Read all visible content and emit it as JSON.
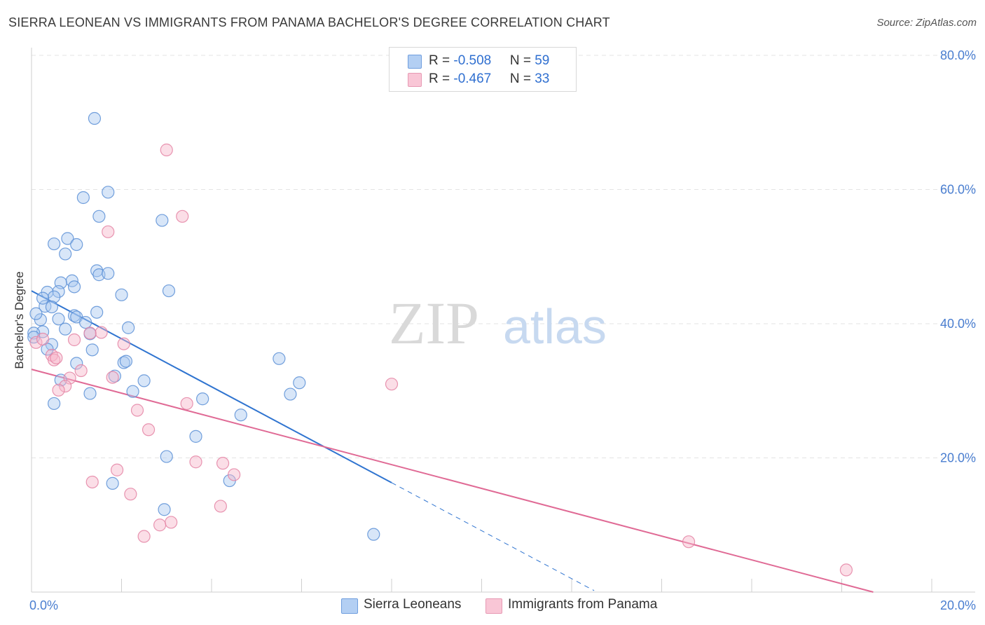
{
  "title": "SIERRA LEONEAN VS IMMIGRANTS FROM PANAMA BACHELOR'S DEGREE CORRELATION CHART",
  "source": "Source: ZipAtlas.com",
  "watermark": {
    "zip": "ZIP",
    "atlas": "atlas"
  },
  "legend_top": [
    {
      "r_label": "R = ",
      "r_value": "-0.508",
      "n_label": "N = ",
      "n_value": "59"
    },
    {
      "r_label": "R = ",
      "r_value": "-0.467",
      "n_label": "N = ",
      "n_value": "33"
    }
  ],
  "colors": {
    "blue_fill": "#a9c8f0",
    "blue_stroke": "#5b8fd6",
    "blue_line": "#2f74d0",
    "pink_fill": "#f6b6c9",
    "pink_stroke": "#e483a3",
    "pink_line": "#e06a95",
    "grid": "#e3e3e3",
    "axis_text": "#4a7ed0"
  },
  "chart_data": {
    "type": "scatter",
    "title": "SIERRA LEONEAN VS IMMIGRANTS FROM PANAMA BACHELOR'S DEGREE CORRELATION CHART",
    "xlabel": "",
    "ylabel": "Bachelor's Degree",
    "xlim": [
      0,
      20
    ],
    "ylim": [
      0,
      80
    ],
    "x_tick_labels": [
      "0.0%",
      "20.0%"
    ],
    "y_tick_values": [
      20,
      40,
      60,
      80
    ],
    "y_tick_labels": [
      "20.0%",
      "40.0%",
      "60.0%",
      "80.0%"
    ],
    "grid": true,
    "legend_position": "bottom",
    "series": [
      {
        "name": "Sierra Leoneans",
        "color": "blue",
        "trend": {
          "x0": 0,
          "y0": 44.9,
          "x1": 8.0,
          "y1": 16.3,
          "dashed_to_x": 12.5
        },
        "points": [
          [
            1.4,
            70.6
          ],
          [
            1.7,
            59.6
          ],
          [
            1.15,
            58.8
          ],
          [
            1.5,
            56.0
          ],
          [
            2.9,
            55.4
          ],
          [
            0.8,
            52.7
          ],
          [
            0.5,
            51.9
          ],
          [
            1.0,
            51.8
          ],
          [
            0.75,
            50.4
          ],
          [
            1.45,
            47.9
          ],
          [
            1.5,
            47.3
          ],
          [
            1.7,
            47.5
          ],
          [
            0.9,
            46.4
          ],
          [
            0.65,
            46.1
          ],
          [
            0.95,
            45.5
          ],
          [
            0.6,
            44.8
          ],
          [
            0.35,
            44.7
          ],
          [
            3.05,
            44.9
          ],
          [
            0.5,
            44.0
          ],
          [
            0.3,
            42.6
          ],
          [
            0.45,
            42.5
          ],
          [
            1.45,
            41.7
          ],
          [
            0.95,
            41.2
          ],
          [
            1.0,
            41.0
          ],
          [
            0.6,
            40.7
          ],
          [
            0.2,
            40.6
          ],
          [
            0.1,
            41.5
          ],
          [
            0.75,
            39.2
          ],
          [
            0.25,
            38.8
          ],
          [
            0.05,
            38.6
          ],
          [
            1.3,
            38.5
          ],
          [
            2.15,
            39.4
          ],
          [
            0.05,
            38.0
          ],
          [
            0.45,
            36.9
          ],
          [
            0.35,
            36.2
          ],
          [
            1.35,
            36.1
          ],
          [
            5.5,
            34.8
          ],
          [
            2.05,
            34.2
          ],
          [
            2.1,
            34.4
          ],
          [
            1.0,
            34.1
          ],
          [
            1.85,
            32.2
          ],
          [
            0.65,
            31.6
          ],
          [
            2.5,
            31.5
          ],
          [
            5.95,
            31.2
          ],
          [
            2.25,
            29.9
          ],
          [
            1.3,
            29.6
          ],
          [
            5.75,
            29.5
          ],
          [
            3.8,
            28.8
          ],
          [
            0.5,
            28.1
          ],
          [
            4.65,
            26.4
          ],
          [
            3.65,
            23.2
          ],
          [
            3.0,
            20.2
          ],
          [
            4.4,
            16.6
          ],
          [
            1.8,
            16.2
          ],
          [
            2.95,
            12.3
          ],
          [
            7.6,
            8.6
          ],
          [
            2.0,
            44.3
          ],
          [
            0.25,
            43.8
          ],
          [
            1.2,
            40.2
          ]
        ]
      },
      {
        "name": "Immigrants from Panama",
        "color": "pink",
        "trend": {
          "x0": 0,
          "y0": 33.2,
          "x1": 18.7,
          "y1": 0.0
        },
        "points": [
          [
            3.0,
            65.9
          ],
          [
            3.35,
            56.0
          ],
          [
            1.7,
            53.7
          ],
          [
            1.55,
            38.7
          ],
          [
            2.05,
            37.0
          ],
          [
            0.95,
            37.6
          ],
          [
            0.1,
            37.2
          ],
          [
            0.25,
            37.7
          ],
          [
            0.45,
            35.3
          ],
          [
            0.5,
            34.6
          ],
          [
            0.55,
            34.9
          ],
          [
            1.1,
            33.0
          ],
          [
            0.85,
            31.9
          ],
          [
            1.8,
            32.0
          ],
          [
            0.75,
            30.7
          ],
          [
            0.6,
            30.1
          ],
          [
            8.0,
            31.0
          ],
          [
            3.45,
            28.1
          ],
          [
            2.35,
            27.1
          ],
          [
            2.6,
            24.2
          ],
          [
            3.65,
            19.4
          ],
          [
            4.25,
            19.2
          ],
          [
            4.5,
            17.5
          ],
          [
            1.9,
            18.2
          ],
          [
            1.35,
            16.4
          ],
          [
            2.2,
            14.6
          ],
          [
            4.2,
            12.8
          ],
          [
            3.1,
            10.4
          ],
          [
            2.85,
            10.0
          ],
          [
            2.5,
            8.3
          ],
          [
            14.6,
            7.5
          ],
          [
            18.1,
            3.3
          ],
          [
            1.3,
            38.6
          ]
        ]
      }
    ]
  },
  "legend_bottom": [
    {
      "label": "Sierra Leoneans"
    },
    {
      "label": "Immigrants from Panama"
    }
  ]
}
